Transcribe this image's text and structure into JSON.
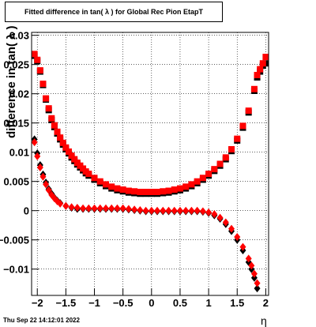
{
  "chart_data": {
    "type": "scatter",
    "title": "Fitted difference in tan( λ ) for Global Rec Pion EtapT",
    "xlabel": "η",
    "ylabel": "difference in tan( λ )",
    "xlim": [
      -2.1,
      2.05
    ],
    "ylim": [
      -0.0145,
      0.0305
    ],
    "x_ticks": [
      "−2",
      "−1.5",
      "−1",
      "−0.5",
      "0",
      "0.5",
      "1",
      "1.5",
      "2"
    ],
    "y_ticks": [
      "−0.01",
      "−0.005",
      "0",
      "0.005",
      "0.01",
      "0.015",
      "0.02",
      "0.025",
      "0.03"
    ],
    "grid": true,
    "series": [
      {
        "marker": "square",
        "color": "#000000",
        "points": [
          [
            -2.05,
            0.0265
          ],
          [
            -2.0,
            0.0256
          ],
          [
            -1.95,
            0.0238
          ],
          [
            -1.9,
            0.0215
          ],
          [
            -1.85,
            0.019
          ],
          [
            -1.8,
            0.0172
          ],
          [
            -1.75,
            0.0155
          ],
          [
            -1.7,
            0.0143
          ],
          [
            -1.65,
            0.0132
          ],
          [
            -1.6,
            0.0122
          ],
          [
            -1.55,
            0.0113
          ],
          [
            -1.5,
            0.0105
          ],
          [
            -1.45,
            0.0098
          ],
          [
            -1.4,
            0.0091
          ],
          [
            -1.35,
            0.0085
          ],
          [
            -1.3,
            0.0079
          ],
          [
            -1.25,
            0.0074
          ],
          [
            -1.2,
            0.0069
          ],
          [
            -1.15,
            0.0064
          ],
          [
            -1.1,
            0.006
          ],
          [
            -1.0,
            0.0053
          ],
          [
            -0.9,
            0.0047
          ],
          [
            -0.8,
            0.0042
          ],
          [
            -0.7,
            0.0038
          ],
          [
            -0.6,
            0.0035
          ],
          [
            -0.5,
            0.0033
          ],
          [
            -0.4,
            0.0031
          ],
          [
            -0.3,
            0.003
          ],
          [
            -0.2,
            0.0029
          ],
          [
            -0.1,
            0.0029
          ],
          [
            0.0,
            0.0029
          ],
          [
            0.1,
            0.0029
          ],
          [
            0.2,
            0.003
          ],
          [
            0.3,
            0.0031
          ],
          [
            0.4,
            0.0033
          ],
          [
            0.5,
            0.0035
          ],
          [
            0.6,
            0.0038
          ],
          [
            0.7,
            0.0042
          ],
          [
            0.8,
            0.0047
          ],
          [
            0.9,
            0.0053
          ],
          [
            1.0,
            0.006
          ],
          [
            1.1,
            0.0068
          ],
          [
            1.2,
            0.0077
          ],
          [
            1.3,
            0.0088
          ],
          [
            1.4,
            0.0102
          ],
          [
            1.5,
            0.012
          ],
          [
            1.6,
            0.0142
          ],
          [
            1.7,
            0.0168
          ],
          [
            1.8,
            0.0205
          ],
          [
            1.85,
            0.0228
          ],
          [
            1.9,
            0.0238
          ],
          [
            1.95,
            0.0248
          ],
          [
            2.0,
            0.0252
          ]
        ]
      },
      {
        "marker": "square",
        "color": "#ff0000",
        "points": [
          [
            -2.05,
            0.0268
          ],
          [
            -2.0,
            0.0258
          ],
          [
            -1.95,
            0.024
          ],
          [
            -1.9,
            0.0217
          ],
          [
            -1.85,
            0.0192
          ],
          [
            -1.8,
            0.0175
          ],
          [
            -1.75,
            0.0158
          ],
          [
            -1.7,
            0.0146
          ],
          [
            -1.65,
            0.0135
          ],
          [
            -1.6,
            0.0125
          ],
          [
            -1.55,
            0.0116
          ],
          [
            -1.5,
            0.0108
          ],
          [
            -1.45,
            0.0101
          ],
          [
            -1.4,
            0.0094
          ],
          [
            -1.35,
            0.0088
          ],
          [
            -1.3,
            0.0082
          ],
          [
            -1.25,
            0.0077
          ],
          [
            -1.2,
            0.0072
          ],
          [
            -1.15,
            0.0067
          ],
          [
            -1.1,
            0.0063
          ],
          [
            -1.0,
            0.0056
          ],
          [
            -0.9,
            0.005
          ],
          [
            -0.8,
            0.0045
          ],
          [
            -0.7,
            0.0041
          ],
          [
            -0.6,
            0.0038
          ],
          [
            -0.5,
            0.0036
          ],
          [
            -0.4,
            0.0034
          ],
          [
            -0.3,
            0.0033
          ],
          [
            -0.2,
            0.0032
          ],
          [
            -0.1,
            0.0032
          ],
          [
            0.0,
            0.0032
          ],
          [
            0.1,
            0.0032
          ],
          [
            0.2,
            0.0033
          ],
          [
            0.3,
            0.0034
          ],
          [
            0.4,
            0.0036
          ],
          [
            0.5,
            0.0038
          ],
          [
            0.6,
            0.0041
          ],
          [
            0.7,
            0.0045
          ],
          [
            0.8,
            0.005
          ],
          [
            0.9,
            0.0056
          ],
          [
            1.0,
            0.0063
          ],
          [
            1.1,
            0.0071
          ],
          [
            1.2,
            0.008
          ],
          [
            1.3,
            0.0091
          ],
          [
            1.4,
            0.0105
          ],
          [
            1.5,
            0.0123
          ],
          [
            1.6,
            0.0145
          ],
          [
            1.7,
            0.0171
          ],
          [
            1.8,
            0.0208
          ],
          [
            1.85,
            0.0232
          ],
          [
            1.9,
            0.0242
          ],
          [
            1.95,
            0.0252
          ],
          [
            2.0,
            0.0263
          ]
        ]
      },
      {
        "marker": "diamond",
        "color": "#000000",
        "points": [
          [
            -2.05,
            0.0122
          ],
          [
            -2.0,
            0.0098
          ],
          [
            -1.95,
            0.0078
          ],
          [
            -1.9,
            0.0062
          ],
          [
            -1.85,
            0.0048
          ],
          [
            -1.8,
            0.0037
          ],
          [
            -1.75,
            0.0029
          ],
          [
            -1.7,
            0.0022
          ],
          [
            -1.65,
            0.0017
          ],
          [
            -1.6,
            0.0013
          ],
          [
            -1.5,
            0.0008
          ],
          [
            -1.4,
            0.0005
          ],
          [
            -1.3,
            0.0003
          ],
          [
            -1.2,
            0.0003
          ],
          [
            -1.1,
            0.0003
          ],
          [
            -1.0,
            0.0003
          ],
          [
            -0.9,
            0.0003
          ],
          [
            -0.8,
            0.0003
          ],
          [
            -0.7,
            0.0003
          ],
          [
            -0.6,
            0.0003
          ],
          [
            -0.5,
            0.0003
          ],
          [
            -0.4,
            0.0002
          ],
          [
            -0.3,
            0.0001
          ],
          [
            -0.2,
            0.0
          ],
          [
            -0.1,
            -0.0001
          ],
          [
            0.0,
            -0.0001
          ],
          [
            0.1,
            -0.0001
          ],
          [
            0.2,
            -0.0001
          ],
          [
            0.3,
            -0.0001
          ],
          [
            0.4,
            -0.0001
          ],
          [
            0.5,
            -0.0001
          ],
          [
            0.6,
            -0.0001
          ],
          [
            0.7,
            -0.0001
          ],
          [
            0.8,
            -0.0001
          ],
          [
            0.9,
            -0.0002
          ],
          [
            1.0,
            -0.0004
          ],
          [
            1.1,
            -0.0008
          ],
          [
            1.2,
            -0.0014
          ],
          [
            1.3,
            -0.0023
          ],
          [
            1.4,
            -0.0035
          ],
          [
            1.5,
            -0.005
          ],
          [
            1.6,
            -0.0068
          ],
          [
            1.7,
            -0.0088
          ],
          [
            1.75,
            -0.01
          ],
          [
            1.8,
            -0.0115
          ],
          [
            1.85,
            -0.0133
          ]
        ]
      },
      {
        "marker": "diamond",
        "color": "#ff0000",
        "points": [
          [
            -2.05,
            0.0117
          ],
          [
            -2.0,
            0.0093
          ],
          [
            -1.95,
            0.0074
          ],
          [
            -1.9,
            0.0058
          ],
          [
            -1.85,
            0.0045
          ],
          [
            -1.8,
            0.0035
          ],
          [
            -1.75,
            0.0027
          ],
          [
            -1.7,
            0.0021
          ],
          [
            -1.65,
            0.0016
          ],
          [
            -1.6,
            0.0012
          ],
          [
            -1.5,
            0.0008
          ],
          [
            -1.4,
            0.0006
          ],
          [
            -1.3,
            0.0005
          ],
          [
            -1.2,
            0.0004
          ],
          [
            -1.1,
            0.0004
          ],
          [
            -1.0,
            0.0004
          ],
          [
            -0.9,
            0.0004
          ],
          [
            -0.8,
            0.0004
          ],
          [
            -0.7,
            0.0004
          ],
          [
            -0.6,
            0.0004
          ],
          [
            -0.5,
            0.0004
          ],
          [
            -0.4,
            0.0003
          ],
          [
            -0.3,
            0.0002
          ],
          [
            -0.2,
            0.0001
          ],
          [
            -0.1,
            0.0
          ],
          [
            0.0,
            0.0
          ],
          [
            0.1,
            0.0
          ],
          [
            0.2,
            0.0
          ],
          [
            0.3,
            0.0
          ],
          [
            0.4,
            0.0
          ],
          [
            0.5,
            0.0
          ],
          [
            0.6,
            0.0
          ],
          [
            0.7,
            0.0
          ],
          [
            0.8,
            0.0
          ],
          [
            0.9,
            -0.0001
          ],
          [
            1.0,
            -0.0003
          ],
          [
            1.1,
            -0.0006
          ],
          [
            1.2,
            -0.0012
          ],
          [
            1.3,
            -0.002
          ],
          [
            1.4,
            -0.0031
          ],
          [
            1.5,
            -0.0045
          ],
          [
            1.6,
            -0.0062
          ],
          [
            1.7,
            -0.0082
          ],
          [
            1.75,
            -0.0094
          ],
          [
            1.8,
            -0.0108
          ],
          [
            1.85,
            -0.0124
          ]
        ]
      }
    ]
  },
  "timestamp": "Thu Sep 22 14:12:01 2022"
}
